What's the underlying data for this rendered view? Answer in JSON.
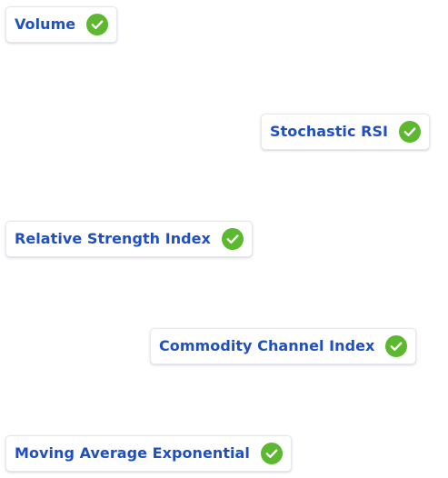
{
  "accent_color": "#1f4fc1",
  "check_color": "#5cb82e",
  "indicators": [
    {
      "label": "Volume",
      "status_icon": "check-circle-icon"
    },
    {
      "label": "Stochastic RSI",
      "status_icon": "check-circle-icon"
    },
    {
      "label": "Relative Strength Index",
      "status_icon": "check-circle-icon"
    },
    {
      "label": "Commodity Channel Index",
      "status_icon": "check-circle-icon"
    },
    {
      "label": "Moving Average Exponential",
      "status_icon": "check-circle-icon"
    }
  ]
}
